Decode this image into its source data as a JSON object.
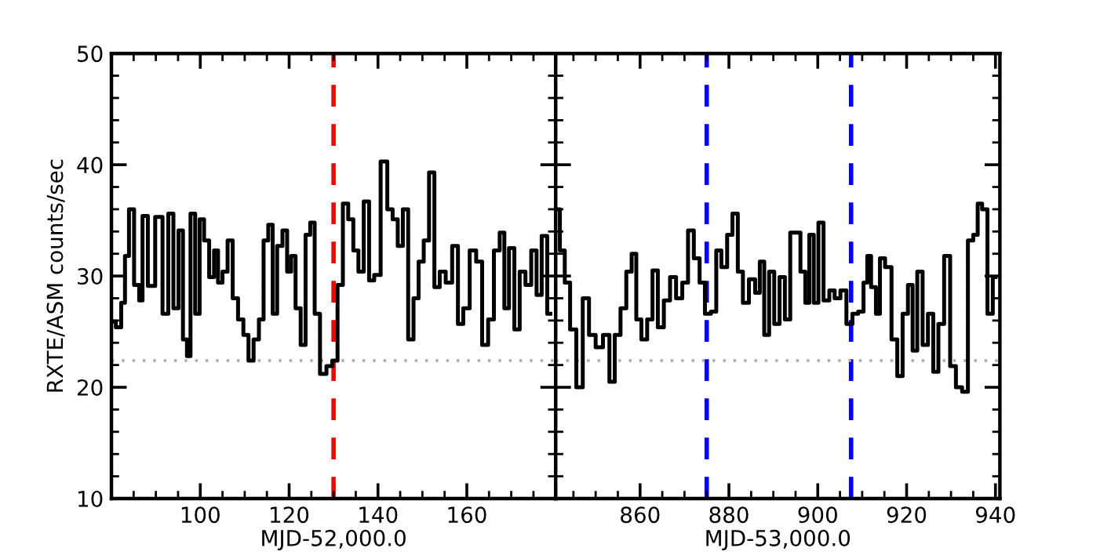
{
  "chart_data": [
    {
      "type": "step",
      "ylabel": "RXTE/ASM counts/sec",
      "xlabel": "MJD-52,000.0",
      "xlim": [
        80,
        180
      ],
      "ylim": [
        10,
        50
      ],
      "xticks": [
        {
          "value": 80,
          "label": null
        },
        {
          "value": 85,
          "label": null
        },
        {
          "value": 90,
          "label": null
        },
        {
          "value": 95,
          "label": null
        },
        100,
        {
          "value": 105,
          "label": null
        },
        {
          "value": 110,
          "label": null
        },
        {
          "value": 115,
          "label": null
        },
        120,
        {
          "value": 125,
          "label": null
        },
        {
          "value": 130,
          "label": null
        },
        {
          "value": 135,
          "label": null
        },
        140,
        {
          "value": 145,
          "label": null
        },
        {
          "value": 150,
          "label": null
        },
        {
          "value": 155,
          "label": null
        },
        160,
        {
          "value": 165,
          "label": null
        },
        {
          "value": 170,
          "label": null
        },
        {
          "value": 175,
          "label": null
        },
        {
          "value": 180,
          "label": null
        }
      ],
      "yticks": [
        10,
        {
          "value": 12,
          "label": null
        },
        {
          "value": 14,
          "label": null
        },
        {
          "value": 16,
          "label": null
        },
        {
          "value": 18,
          "label": null
        },
        20,
        {
          "value": 22,
          "label": null
        },
        {
          "value": 24,
          "label": null
        },
        {
          "value": 26,
          "label": null
        },
        {
          "value": 28,
          "label": null
        },
        30,
        {
          "value": 32,
          "label": null
        },
        {
          "value": 34,
          "label": null
        },
        {
          "value": 36,
          "label": null
        },
        {
          "value": 38,
          "label": null
        },
        40,
        {
          "value": 42,
          "label": null
        },
        {
          "value": 44,
          "label": null
        },
        {
          "value": 46,
          "label": null
        },
        {
          "value": 48,
          "label": null
        },
        50
      ],
      "grid": false,
      "line_style": "solid",
      "marker": "none",
      "ref_lines": [
        {
          "axis": "x",
          "value": 130,
          "color": "#ff0000",
          "line_style": "dashed"
        },
        {
          "axis": "y",
          "value": 22.4,
          "color": "#aaaaaa",
          "line_style": "dotted"
        }
      ],
      "series": [
        {
          "color": "#000000",
          "x": [
            80.2,
            81.8,
            82.6,
            83.5,
            84.4,
            85.8,
            86.7,
            87.3,
            89.1,
            90.6,
            92.4,
            93.2,
            94.7,
            95.5,
            96.7,
            97.3,
            98.3,
            99.4,
            100.3,
            101.4,
            102.6,
            103.6,
            104.4,
            105.6,
            106.7,
            107.9,
            109.1,
            110.3,
            111.4,
            112.6,
            113.8,
            114.7,
            115.9,
            116.7,
            117.9,
            119.1,
            120.0,
            120.9,
            122.0,
            123.2,
            124.2,
            125.3,
            126.2,
            127.7,
            129.1,
            130.3,
            131.5,
            132.7,
            133.9,
            135.0,
            136.2,
            137.4,
            138.6,
            139.7,
            141.5,
            142.7,
            143.9,
            145.0,
            146.2,
            147.4,
            148.6,
            149.7,
            150.9,
            152.1,
            153.3,
            154.5,
            156.0,
            157.4,
            158.6,
            159.8,
            161.5,
            162.7,
            164.2,
            165.4,
            166.8,
            168.0,
            168.9,
            170.1,
            171.3,
            172.5,
            173.9,
            175.1,
            176.3,
            177.4,
            178.8
          ],
          "values": [
            25.9,
            25.4,
            27.6,
            31.8,
            36.0,
            29.2,
            27.8,
            35.4,
            29.1,
            35.3,
            26.6,
            35.6,
            27.1,
            34.1,
            24.3,
            22.8,
            35.6,
            26.6,
            35.1,
            33.2,
            29.9,
            32.3,
            29.4,
            30.4,
            33.2,
            28.0,
            26.1,
            24.7,
            22.4,
            24.3,
            26.1,
            33.2,
            34.6,
            26.6,
            32.7,
            34.1,
            30.4,
            31.8,
            27.1,
            23.8,
            33.7,
            34.8,
            26.6,
            21.2,
            21.9,
            22.4,
            29.2,
            36.5,
            35.1,
            32.3,
            30.4,
            36.7,
            29.6,
            30.1,
            40.3,
            36.0,
            35.1,
            32.7,
            36.0,
            24.3,
            28.0,
            31.3,
            33.2,
            39.3,
            29.0,
            30.4,
            29.4,
            32.7,
            25.7,
            27.1,
            32.3,
            31.3,
            23.8,
            26.1,
            32.3,
            33.9,
            27.1,
            32.5,
            25.2,
            30.4,
            29.2,
            32.3,
            28.3,
            33.6,
            26.6
          ]
        }
      ]
    },
    {
      "type": "step",
      "xlabel": "MJD-53,000.0",
      "xlim": [
        841,
        941
      ],
      "ylim": [
        10,
        50
      ],
      "tick_labels": "x",
      "xticks": [
        {
          "value": 845,
          "label": null
        },
        {
          "value": 850,
          "label": null
        },
        {
          "value": 855,
          "label": null
        },
        860,
        {
          "value": 865,
          "label": null
        },
        {
          "value": 870,
          "label": null
        },
        {
          "value": 875,
          "label": null
        },
        880,
        {
          "value": 885,
          "label": null
        },
        {
          "value": 890,
          "label": null
        },
        {
          "value": 895,
          "label": null
        },
        900,
        {
          "value": 905,
          "label": null
        },
        {
          "value": 910,
          "label": null
        },
        {
          "value": 915,
          "label": null
        },
        920,
        {
          "value": 925,
          "label": null
        },
        {
          "value": 930,
          "label": null
        },
        {
          "value": 935,
          "label": null
        },
        940
      ],
      "yticks": [
        10,
        {
          "value": 12,
          "label": null
        },
        {
          "value": 14,
          "label": null
        },
        {
          "value": 16,
          "label": null
        },
        {
          "value": 18,
          "label": null
        },
        20,
        {
          "value": 22,
          "label": null
        },
        {
          "value": 24,
          "label": null
        },
        {
          "value": 26,
          "label": null
        },
        {
          "value": 28,
          "label": null
        },
        30,
        {
          "value": 32,
          "label": null
        },
        {
          "value": 34,
          "label": null
        },
        {
          "value": 36,
          "label": null
        },
        {
          "value": 38,
          "label": null
        },
        40,
        {
          "value": 42,
          "label": null
        },
        {
          "value": 44,
          "label": null
        },
        {
          "value": 46,
          "label": null
        },
        {
          "value": 48,
          "label": null
        },
        50
      ],
      "grid": false,
      "line_style": "solid",
      "marker": "none",
      "ref_lines": [
        {
          "axis": "x",
          "value": 875,
          "color": "#0000ff",
          "line_style": "dashed"
        },
        {
          "axis": "x",
          "value": 907.5,
          "color": "#0000ff",
          "line_style": "dashed"
        },
        {
          "axis": "y",
          "value": 22.4,
          "color": "#aaaaaa",
          "line_style": "dotted"
        }
      ],
      "series": [
        {
          "color": "#000000",
          "x": [
            841.4,
            842.5,
            843.6,
            844.9,
            846.4,
            847.8,
            849.2,
            850.8,
            852.5,
            853.7,
            854.9,
            856.3,
            857.5,
            858.7,
            859.6,
            861.0,
            862.2,
            863.4,
            864.6,
            866.1,
            867.4,
            868.8,
            870.2,
            871.4,
            872.8,
            874.0,
            875.2,
            876.7,
            877.6,
            879.0,
            880.2,
            881.4,
            882.6,
            883.7,
            885.3,
            886.5,
            887.4,
            888.5,
            889.6,
            890.8,
            892.0,
            893.2,
            894.4,
            895.5,
            896.7,
            897.7,
            898.5,
            899.7,
            900.6,
            902.0,
            903.2,
            904.4,
            905.8,
            907.1,
            908.5,
            909.7,
            910.9,
            911.4,
            912.6,
            913.6,
            914.4,
            915.9,
            917.3,
            918.5,
            919.7,
            920.9,
            921.8,
            923.0,
            924.2,
            925.4,
            926.6,
            927.7,
            929.2,
            930.4,
            931.8,
            933.2,
            934.4,
            935.6,
            936.4,
            937.6,
            938.8,
            940.0
          ],
          "values": [
            36.0,
            32.3,
            29.4,
            25.2,
            20.0,
            28.0,
            24.7,
            23.6,
            24.7,
            20.5,
            24.7,
            27.1,
            30.4,
            32.0,
            26.1,
            24.3,
            26.1,
            30.5,
            25.4,
            27.8,
            29.9,
            28.0,
            29.4,
            34.1,
            31.6,
            29.4,
            26.6,
            26.8,
            32.3,
            30.8,
            33.7,
            35.6,
            30.4,
            27.6,
            29.7,
            28.5,
            31.3,
            24.7,
            30.4,
            25.7,
            29.9,
            26.1,
            33.9,
            33.9,
            30.4,
            27.6,
            33.7,
            27.6,
            34.8,
            27.8,
            28.7,
            28.0,
            28.7,
            25.7,
            26.6,
            26.8,
            29.4,
            31.8,
            29.0,
            26.6,
            31.6,
            30.8,
            24.3,
            21.0,
            26.6,
            29.2,
            23.3,
            30.4,
            23.8,
            26.6,
            21.4,
            25.7,
            31.8,
            21.9,
            20.0,
            19.6,
            33.2,
            33.7,
            36.5,
            36.0,
            26.6,
            29.9
          ]
        }
      ]
    }
  ]
}
